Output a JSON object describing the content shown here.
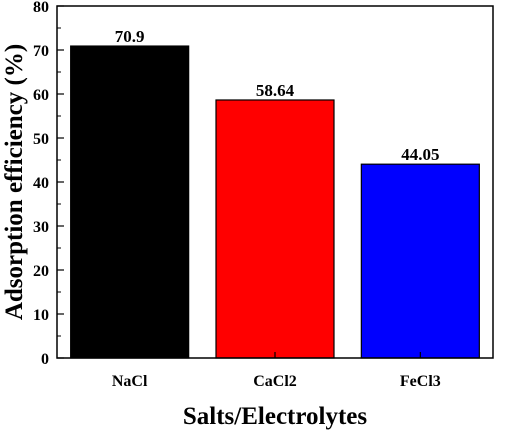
{
  "chart_data": {
    "type": "bar",
    "categories": [
      "NaCl",
      "CaCl2",
      "FeCl3"
    ],
    "values": [
      70.9,
      58.64,
      44.05
    ],
    "value_labels": [
      "70.9",
      "58.64",
      "44.05"
    ],
    "colors": [
      "#000000",
      "#ff0000",
      "#0000ff"
    ],
    "xlabel": "Salts/Electrolytes",
    "ylabel": "Adsorption efficiency (%)",
    "ylim": [
      0,
      80
    ],
    "yticks": [
      0,
      10,
      20,
      30,
      40,
      50,
      60,
      70,
      80
    ],
    "grid": false,
    "legend": "none"
  }
}
